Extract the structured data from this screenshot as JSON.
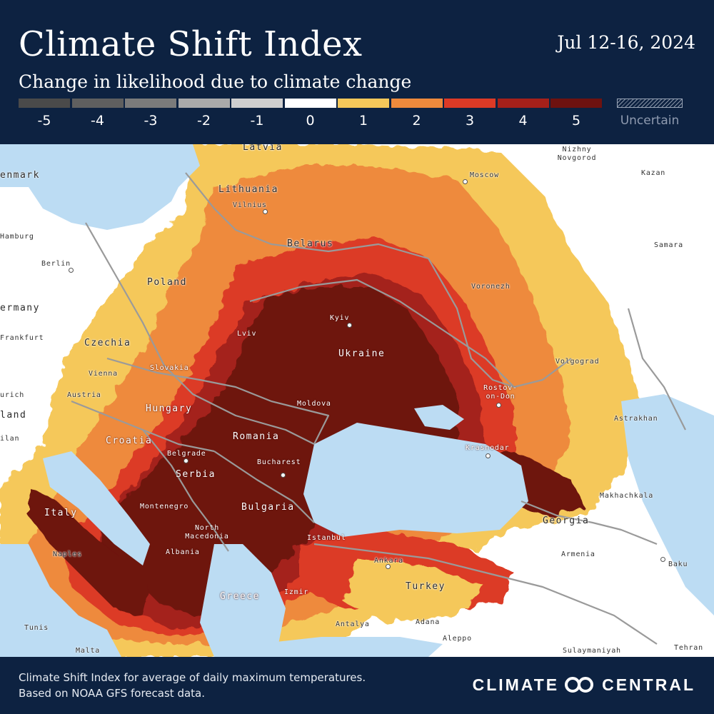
{
  "header": {
    "title": "Climate Shift Index",
    "date": "Jul 12-16, 2024",
    "subtitle": "Change in likelihood due to climate change"
  },
  "legend": {
    "items": [
      {
        "label": "-5",
        "color": "#4a4a4a"
      },
      {
        "label": "-4",
        "color": "#5f5f5f"
      },
      {
        "label": "-3",
        "color": "#7b7b7b"
      },
      {
        "label": "-2",
        "color": "#aaaaaa"
      },
      {
        "label": "-1",
        "color": "#cfcfcf"
      },
      {
        "label": "0",
        "color": "#ffffff"
      },
      {
        "label": "1",
        "color": "#f5c85a"
      },
      {
        "label": "2",
        "color": "#ee8a3c"
      },
      {
        "label": "3",
        "color": "#dc3a26"
      },
      {
        "label": "4",
        "color": "#a4201a"
      },
      {
        "label": "5",
        "color": "#6e1210"
      }
    ],
    "uncertain_label": "Uncertain"
  },
  "map": {
    "colors": {
      "water": "#bcdcf3",
      "land": "#ffffff",
      "level1": "#f5c85a",
      "level2": "#ee8a3c",
      "level3": "#dc3a26",
      "level4": "#a4201a",
      "level5": "#6e1210",
      "border": "#9a9a9a"
    },
    "labels": {
      "latvia": "Latvia",
      "denmark": "enmark",
      "lithuania": "Lithuania",
      "vilnius": "Vilnius",
      "moscow": "Moscow",
      "nizhny": "Nizhny Novgorod",
      "kazan": "Kazan",
      "hamburg": "Hamburg",
      "belarus": "Belarus",
      "samara": "Samara",
      "berlin": "Berlin",
      "poland": "Poland",
      "voronezh": "Voronezh",
      "germany": "ermany",
      "kyiv": "Kyiv",
      "lviv": "Lviv",
      "frankfurt": "Frankfurt",
      "czechia": "Czechia",
      "ukraine": "Ukraine",
      "slovakia": "Slovakia",
      "vienna": "Vienna",
      "volgograd": "Volgograd",
      "zurich": "urich",
      "austria": "Austria",
      "rostov": "Rostov-on-Don",
      "hungary": "Hungary",
      "moldova": "Moldova",
      "switzerland": "land",
      "astrakhan": "Astrakhan",
      "milan": "ilan",
      "croatia": "Croatia",
      "romania": "Romania",
      "krasnodar": "Krasnodar",
      "belgrade": "Belgrade",
      "bucharest": "Bucharest",
      "serbia": "Serbia",
      "makhachkala": "Makhachkala",
      "italy": "Italy",
      "montenegro": "Montenegro",
      "bulgaria": "Bulgaria",
      "georgia": "Georgia",
      "north_macedonia": "North Macedonia",
      "istanbul": "Istanbul",
      "naples": "Naples",
      "albania": "Albania",
      "ankara": "Ankara",
      "armenia": "Armenia",
      "baku": "Baku",
      "turkey": "Turkey",
      "greece": "Greece",
      "izmir": "Izmir",
      "tunis": "Tunis",
      "antalya": "Antalya",
      "adana": "Adana",
      "aleppo": "Aleppo",
      "malta": "Malta",
      "sulaymaniyah": "Sulaymaniyah",
      "tehran": "Tehran"
    }
  },
  "footer": {
    "note_line1": "Climate Shift Index for average of daily maximum temperatures.",
    "note_line2": "Based on NOAA GFS forecast data.",
    "brand_left": "CLIMATE",
    "brand_right": "CENTRAL"
  }
}
